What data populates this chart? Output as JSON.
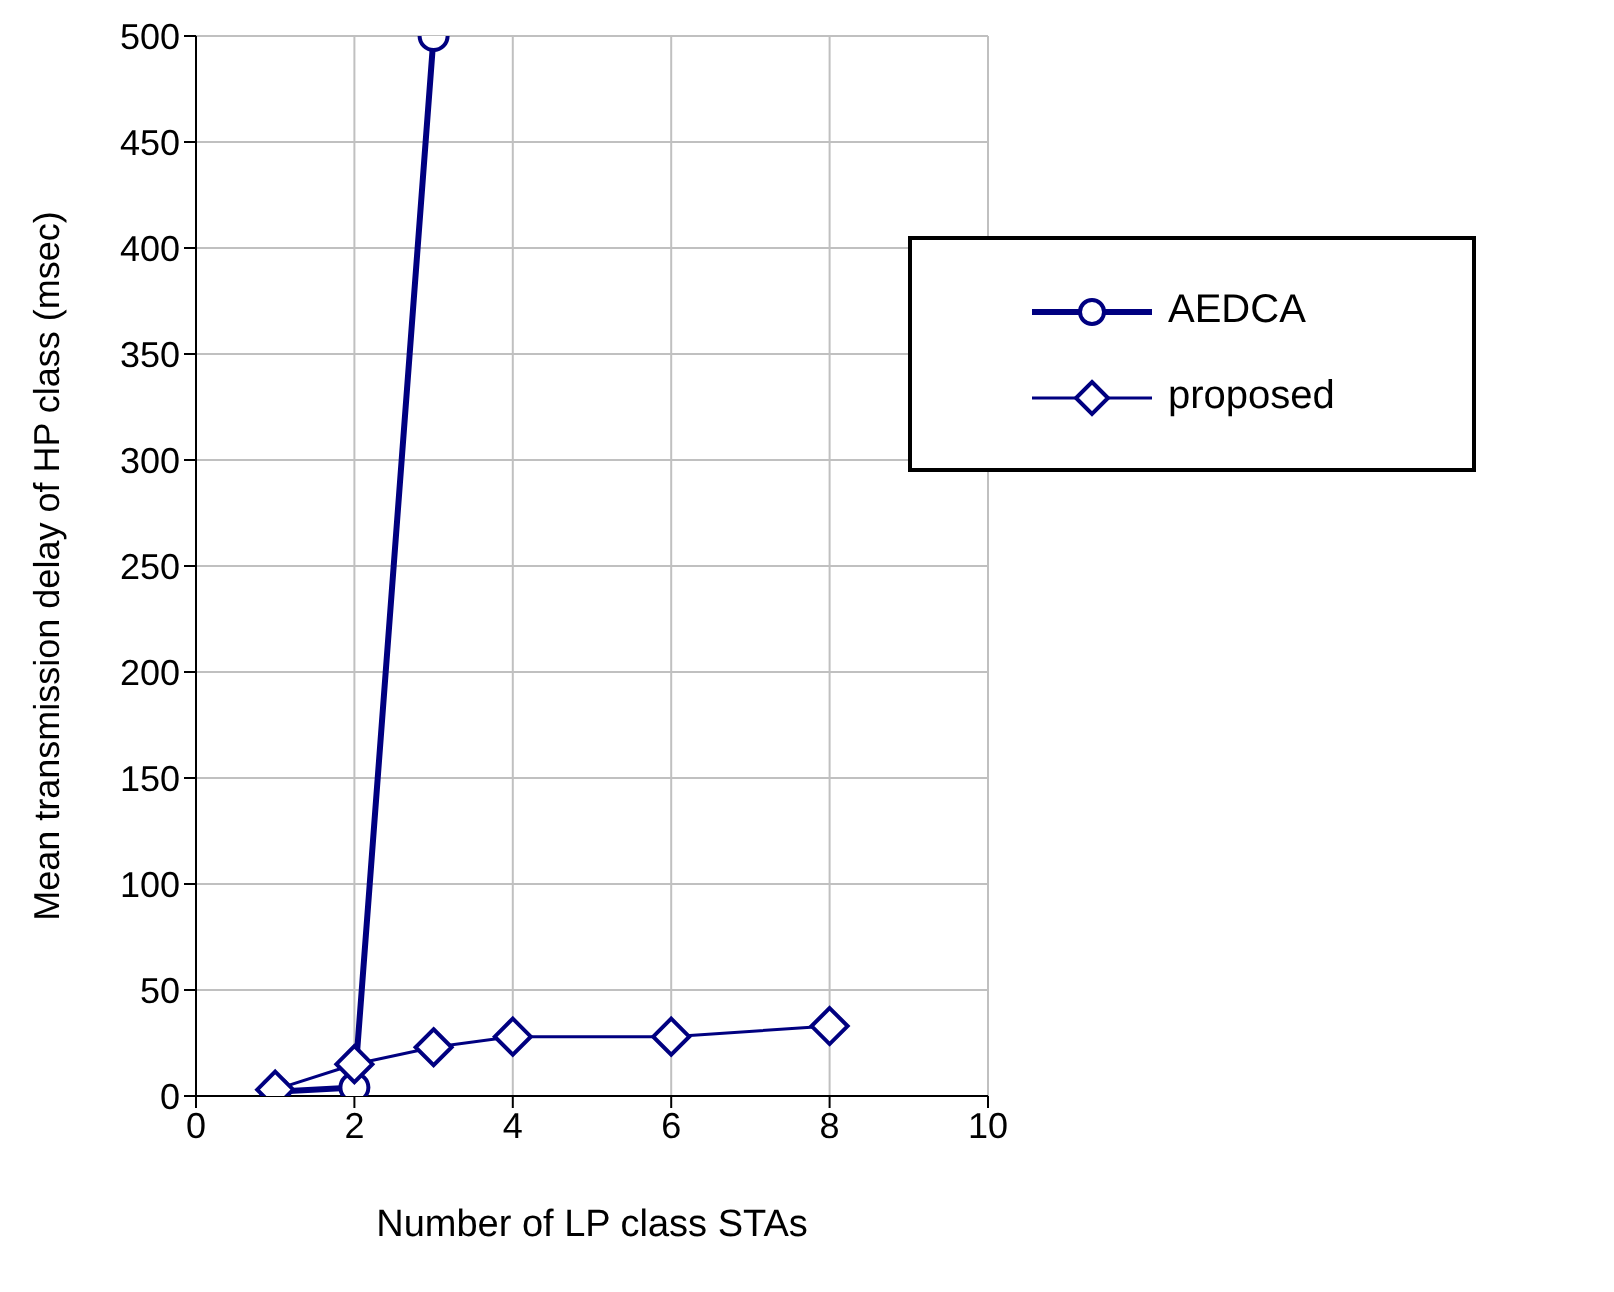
{
  "chart_data": {
    "type": "line",
    "xlabel": "Number of LP class STAs",
    "ylabel": "Mean transmission delay of HP class (msec)",
    "xlim": [
      0,
      10
    ],
    "xticks": [
      0,
      2,
      4,
      6,
      8,
      10
    ],
    "ylim": [
      0,
      500
    ],
    "yticks": [
      0,
      50,
      100,
      150,
      200,
      250,
      300,
      350,
      400,
      450,
      500
    ],
    "grid": true,
    "legend": "top right",
    "series": [
      {
        "name": "AEDCA",
        "color": "#000080",
        "marker": "circle",
        "x": [
          1,
          2,
          3
        ],
        "values": [
          2,
          4,
          500
        ]
      },
      {
        "name": "proposed",
        "color": "#000080",
        "marker": "diamond",
        "x": [
          1,
          2,
          3,
          4,
          6,
          8
        ],
        "values": [
          3,
          15,
          23,
          28,
          28,
          33
        ]
      }
    ]
  }
}
